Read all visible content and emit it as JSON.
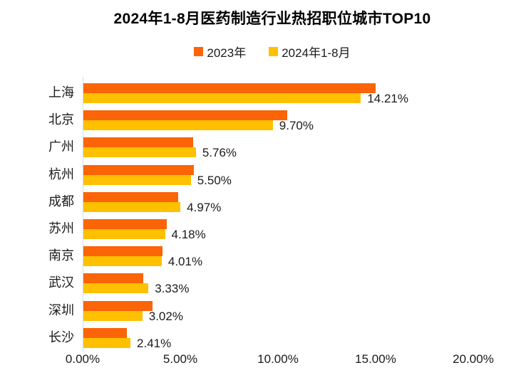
{
  "title": "2024年1-8月医药制造行业热招职位城市TOP10",
  "legend": {
    "items": [
      {
        "label": "2023年",
        "color": "#fb6407"
      },
      {
        "label": "2024年1-8月",
        "color": "#ffc000"
      }
    ]
  },
  "colors": {
    "series_2023": "#fb6407",
    "series_2024": "#ffc000",
    "axis_line": "#d9d9d9",
    "text": "#1a1a1a"
  },
  "chart_data": {
    "type": "bar",
    "orientation": "horizontal",
    "title": "2024年1-8月医药制造行业热招职位城市TOP10",
    "legend_position": "top",
    "grid": false,
    "xlim": [
      0,
      20
    ],
    "categories": [
      "上海",
      "北京",
      "广州",
      "杭州",
      "成都",
      "苏州",
      "南京",
      "武汉",
      "深圳",
      "长沙"
    ],
    "series": [
      {
        "name": "2023年",
        "color": "#fb6407",
        "values": [
          14.95,
          10.44,
          5.62,
          5.66,
          4.85,
          4.27,
          4.05,
          3.07,
          3.54,
          2.23
        ]
      },
      {
        "name": "2024年1-8月",
        "color": "#ffc000",
        "values": [
          14.21,
          9.7,
          5.76,
          5.5,
          4.97,
          4.18,
          4.01,
          3.33,
          3.02,
          2.41
        ]
      }
    ],
    "value_labels": [
      "14.21%",
      "9.70%",
      "5.76%",
      "5.50%",
      "4.97%",
      "4.18%",
      "4.01%",
      "3.33%",
      "3.02%",
      "2.41%"
    ],
    "x_ticks": [
      {
        "value": 0,
        "label": "0.00%"
      },
      {
        "value": 5,
        "label": "5.00%"
      },
      {
        "value": 10,
        "label": "10.00%"
      },
      {
        "value": 15,
        "label": "15.00%"
      },
      {
        "value": 20,
        "label": "20.00%"
      }
    ]
  }
}
